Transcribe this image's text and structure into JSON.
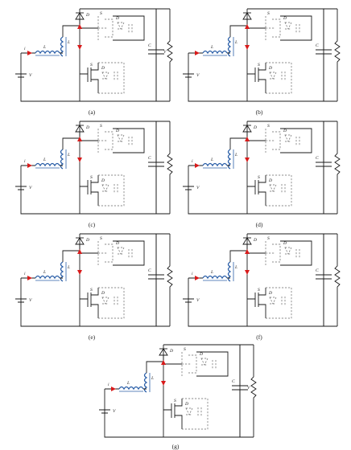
{
  "figure": {
    "panels": [
      {
        "id": "a",
        "caption": "(a)",
        "labels": {
          "D1": "D",
          "L1": "L",
          "L2": "L",
          "i_in": "i",
          "V_in": "V",
          "S2": "S",
          "D_S2": "D",
          "S1": "S",
          "D_S1": "D",
          "C_o": "C",
          "V_o": "V"
        }
      },
      {
        "id": "b",
        "caption": "(b)",
        "labels": {
          "L1": "L",
          "L2": "L",
          "V_in": "V",
          "S2": "S",
          "D_S2": "D",
          "S1": "S",
          "D_S1": "D",
          "C_o": "C"
        }
      },
      {
        "id": "c",
        "caption": "(c)",
        "labels": {
          "D1": "D",
          "L1": "L",
          "L2": "L",
          "i_in": "i",
          "V_in": "V",
          "S2": "S",
          "D_S2": "D",
          "S1": "S",
          "D_S1": "D",
          "C_o": "C"
        }
      },
      {
        "id": "d",
        "caption": "(d)",
        "labels": {
          "D1": "D",
          "L1": "L",
          "L2": "L",
          "i_in": "i",
          "V_in": "V",
          "S2": "S",
          "D_S2": "D",
          "S1": "S",
          "D_S1": "D",
          "C_o": "C"
        }
      },
      {
        "id": "e",
        "caption": "(e)",
        "labels": {
          "D1": "D",
          "L1": "L",
          "L2": "L",
          "i_in": "i",
          "V_in": "V",
          "S2": "S",
          "D_S2": "D",
          "S1": "S",
          "D_S1": "D",
          "C_o": "C"
        }
      },
      {
        "id": "f",
        "caption": "(f)",
        "labels": {
          "D1": "D",
          "L1": "L",
          "L2": "L",
          "i_in": "i",
          "V_in": "V",
          "S2": "S",
          "D_S2": "D",
          "S1": "S",
          "D_S1": "D",
          "C_o": "C"
        }
      },
      {
        "id": "g",
        "caption": "(g)",
        "labels": {
          "D1": "D",
          "L1": "L",
          "L2": "L",
          "i_in": "i",
          "V_in": "V",
          "S2": "S",
          "D_S2": "D",
          "S1": "S",
          "D_S1": "D",
          "C_o": "C",
          "V_o": "V"
        }
      }
    ],
    "colors": {
      "wire": "#1a1a1a",
      "inactive": "#6a6a6a",
      "inductor": "#2b5fa8",
      "current_marker": "#d81a1a"
    }
  }
}
